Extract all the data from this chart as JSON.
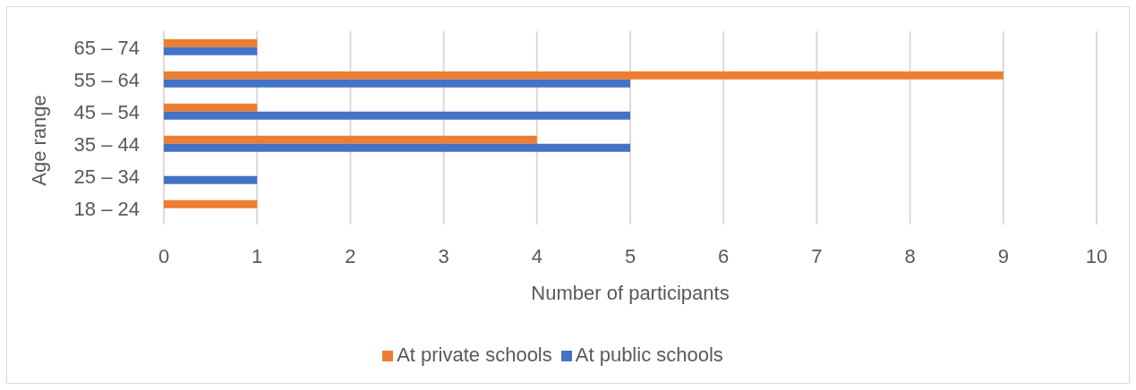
{
  "chart_data": {
    "type": "bar",
    "orientation": "horizontal",
    "categories": [
      "65 – 74",
      "55 – 64",
      "45 – 54",
      "35 – 44",
      "25 – 34",
      "18 – 24"
    ],
    "series": [
      {
        "name": "At private schools",
        "color": "#ed7d31",
        "values": [
          1,
          9,
          1,
          4,
          0,
          1
        ]
      },
      {
        "name": "At public schools",
        "color": "#4472c4",
        "values": [
          1,
          5,
          5,
          5,
          1,
          0
        ]
      }
    ],
    "xlim": [
      0,
      10
    ],
    "xticks": [
      0,
      1,
      2,
      3,
      4,
      5,
      6,
      7,
      8,
      9,
      10
    ],
    "xlabel": "Number of participants",
    "ylabel": "Age range",
    "grid": "x",
    "legend": "bottom"
  }
}
